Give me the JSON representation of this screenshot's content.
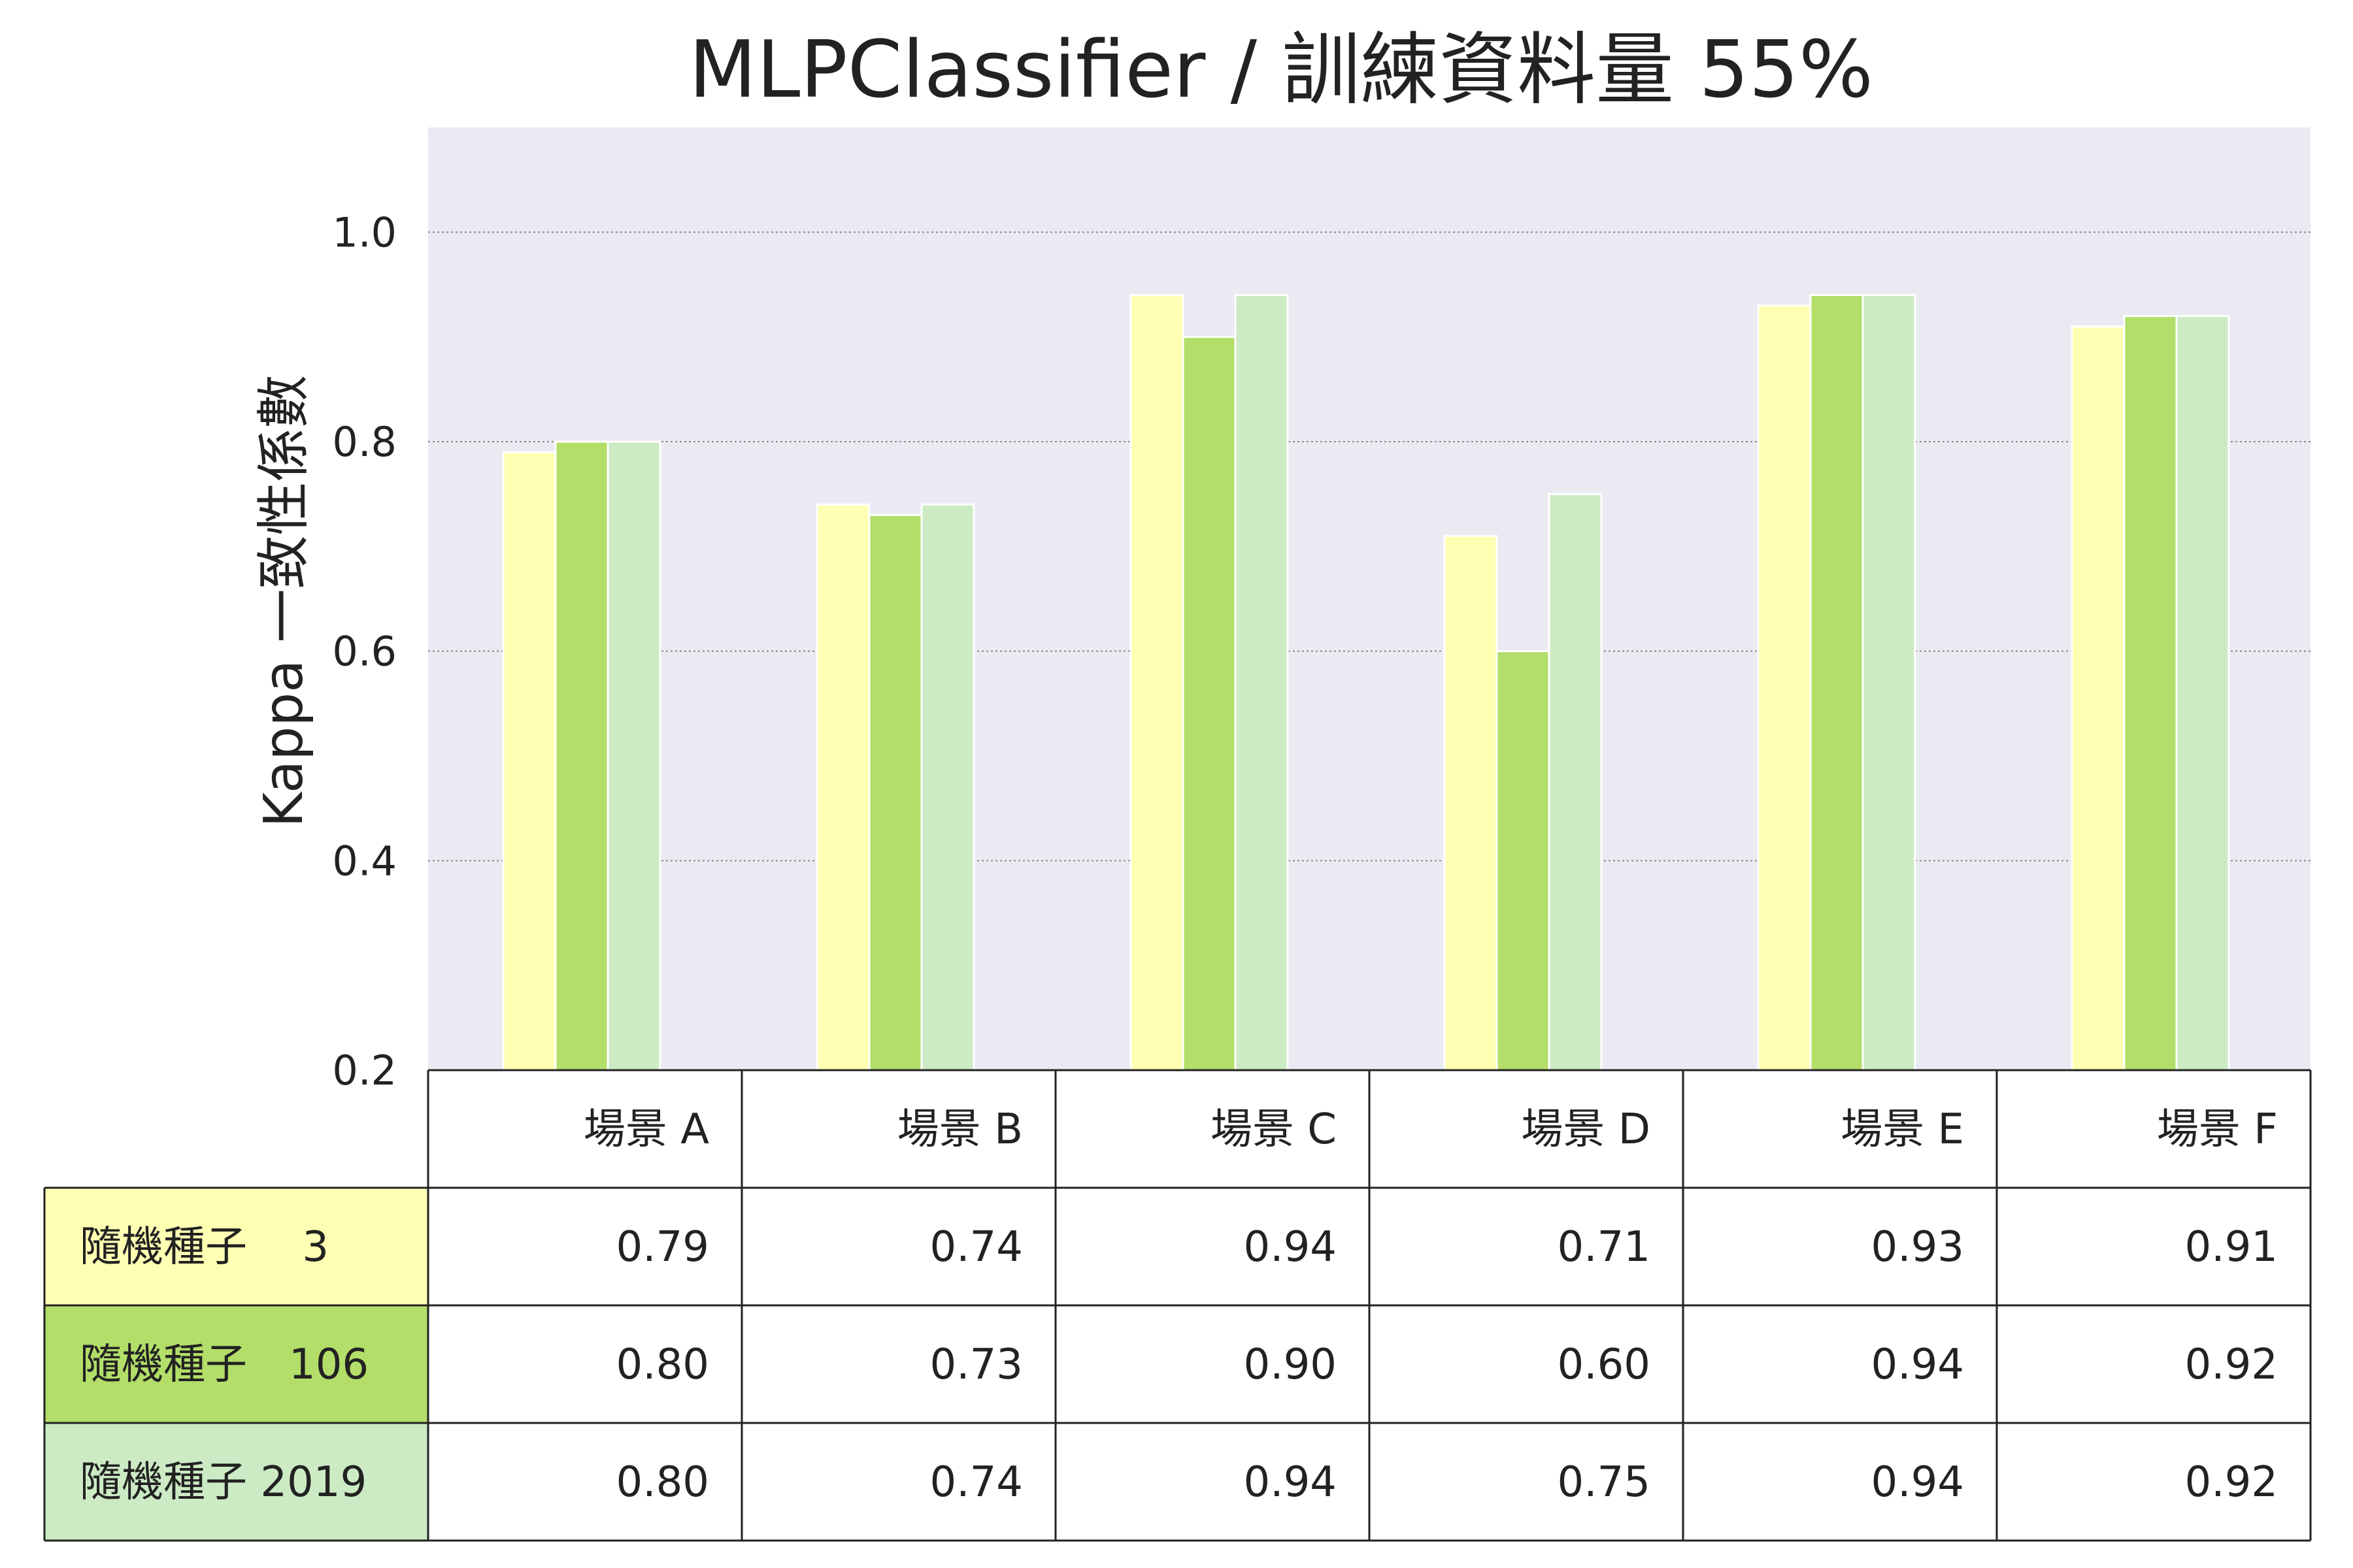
{
  "chart_data": {
    "type": "bar",
    "title": "MLPClassifier / 訓練資料量 55%",
    "ylabel": "Kappa 一致性係數",
    "xlabel": "",
    "ylim": [
      0.2,
      1.1
    ],
    "yticks": [
      "0.2",
      "0.4",
      "0.6",
      "0.8",
      "1.0"
    ],
    "ytick_values": [
      0.2,
      0.4,
      0.6,
      0.8,
      1.0
    ],
    "grid": true,
    "legend": "table-below",
    "categories": [
      "場景 A",
      "場景 B",
      "場景 C",
      "場景 D",
      "場景 E",
      "場景 F"
    ],
    "series": [
      {
        "name": "隨機種子　 3",
        "color": "#ffffb3",
        "values": [
          0.79,
          0.74,
          0.94,
          0.71,
          0.93,
          0.91
        ],
        "labels": [
          "0.79",
          "0.74",
          "0.94",
          "0.71",
          "0.93",
          "0.91"
        ]
      },
      {
        "name": "隨機種子　106",
        "color": "#b3de69",
        "values": [
          0.8,
          0.73,
          0.9,
          0.6,
          0.94,
          0.92
        ],
        "labels": [
          "0.80",
          "0.73",
          "0.90",
          "0.60",
          "0.94",
          "0.92"
        ]
      },
      {
        "name": "隨機種子 2019",
        "color": "#ccebc5",
        "values": [
          0.8,
          0.74,
          0.94,
          0.75,
          0.94,
          0.92
        ],
        "labels": [
          "0.80",
          "0.74",
          "0.94",
          "0.75",
          "0.94",
          "0.92"
        ]
      }
    ],
    "plot_background": "#eaeaf2"
  }
}
